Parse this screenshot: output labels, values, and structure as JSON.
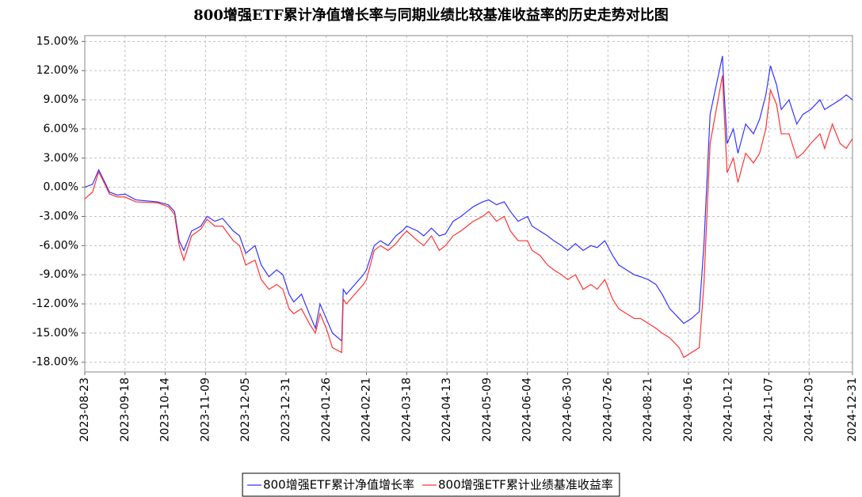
{
  "chart_data": {
    "type": "line",
    "title": "800增强ETF累计净值增长率与同期业绩比较基准收益率的历史走势对比图",
    "x": [
      "2023-08-23",
      "2023-08-28",
      "2023-09-01",
      "2023-09-05",
      "2023-09-08",
      "2023-09-13",
      "2023-09-18",
      "2023-09-25",
      "2023-10-09",
      "2023-10-16",
      "2023-10-20",
      "2023-10-23",
      "2023-10-26",
      "2023-10-31",
      "2023-11-06",
      "2023-11-10",
      "2023-11-15",
      "2023-11-20",
      "2023-11-27",
      "2023-12-01",
      "2023-12-05",
      "2023-12-11",
      "2023-12-15",
      "2023-12-20",
      "2023-12-25",
      "2023-12-29",
      "2024-01-02",
      "2024-01-05",
      "2024-01-10",
      "2024-01-15",
      "2024-01-19",
      "2024-01-22",
      "2024-01-26",
      "2024-01-30",
      "2024-02-05",
      "2024-02-06",
      "2024-02-08",
      "2024-02-19",
      "2024-02-21",
      "2024-02-26",
      "2024-03-01",
      "2024-03-06",
      "2024-03-11",
      "2024-03-15",
      "2024-03-18",
      "2024-03-25",
      "2024-03-29",
      "2024-04-03",
      "2024-04-08",
      "2024-04-12",
      "2024-04-17",
      "2024-04-22",
      "2024-04-26",
      "2024-04-30",
      "2024-05-06",
      "2024-05-10",
      "2024-05-15",
      "2024-05-20",
      "2024-05-24",
      "2024-05-29",
      "2024-06-04",
      "2024-06-07",
      "2024-06-12",
      "2024-06-17",
      "2024-06-21",
      "2024-06-26",
      "2024-06-30",
      "2024-07-05",
      "2024-07-10",
      "2024-07-15",
      "2024-07-19",
      "2024-07-24",
      "2024-07-29",
      "2024-08-02",
      "2024-08-07",
      "2024-08-12",
      "2024-08-16",
      "2024-08-21",
      "2024-08-26",
      "2024-08-30",
      "2024-09-04",
      "2024-09-10",
      "2024-09-13",
      "2024-09-18",
      "2024-09-23",
      "2024-09-26",
      "2024-09-30",
      "2024-10-08",
      "2024-10-09",
      "2024-10-11",
      "2024-10-15",
      "2024-10-18",
      "2024-10-23",
      "2024-10-28",
      "2024-11-01",
      "2024-11-05",
      "2024-11-08",
      "2024-11-12",
      "2024-11-15",
      "2024-11-20",
      "2024-11-25",
      "2024-11-29",
      "2024-12-04",
      "2024-12-10",
      "2024-12-13",
      "2024-12-18",
      "2024-12-23",
      "2024-12-27",
      "2024-12-31"
    ],
    "series": [
      {
        "name": "800增强ETF累计净值增长率",
        "color": "#3333ff",
        "values": [
          0,
          0.3,
          1.8,
          0.5,
          -0.5,
          -0.8,
          -0.7,
          -1.3,
          -1.5,
          -1.8,
          -2.5,
          -5.5,
          -6.5,
          -4.5,
          -4.0,
          -3.0,
          -3.5,
          -3.2,
          -4.5,
          -5.0,
          -6.8,
          -6.0,
          -8.0,
          -9.2,
          -8.5,
          -9.0,
          -11.0,
          -11.8,
          -11.0,
          -13.0,
          -14.5,
          -12.0,
          -13.5,
          -15.0,
          -15.8,
          -10.5,
          -11.0,
          -9.0,
          -8.5,
          -6.0,
          -5.5,
          -6.0,
          -5.0,
          -4.5,
          -4.0,
          -4.5,
          -5.0,
          -4.2,
          -5.0,
          -4.8,
          -3.5,
          -3.0,
          -2.5,
          -2.0,
          -1.5,
          -1.3,
          -1.8,
          -1.5,
          -2.5,
          -3.5,
          -3.0,
          -4.0,
          -4.5,
          -5.0,
          -5.5,
          -6.0,
          -6.5,
          -5.8,
          -6.5,
          -6.0,
          -6.2,
          -5.5,
          -7.0,
          -8.0,
          -8.5,
          -9.0,
          -9.2,
          -9.5,
          -10.0,
          -11.0,
          -12.5,
          -13.5,
          -14.0,
          -13.5,
          -12.8,
          -6.0,
          7.5,
          13.5,
          10.0,
          4.5,
          6.0,
          3.5,
          6.5,
          5.5,
          7.0,
          9.5,
          12.5,
          10.5,
          8.0,
          9.0,
          6.5,
          7.5,
          8.0,
          9.0,
          8.0,
          8.5,
          9.0,
          9.5,
          9.0
        ]
      },
      {
        "name": "800增强ETF累计业绩基准收益率",
        "color": "#ff3333",
        "values": [
          -1.2,
          -0.5,
          1.6,
          0.3,
          -0.7,
          -1.0,
          -1.0,
          -1.5,
          -1.6,
          -2.0,
          -2.8,
          -6.0,
          -7.5,
          -5.0,
          -4.3,
          -3.3,
          -4.0,
          -4.0,
          -5.5,
          -6.0,
          -8.0,
          -7.5,
          -9.5,
          -10.5,
          -10.0,
          -10.5,
          -12.5,
          -13.0,
          -12.5,
          -14.0,
          -15.0,
          -13.0,
          -14.5,
          -16.5,
          -17.0,
          -11.5,
          -12.0,
          -10.0,
          -9.5,
          -6.5,
          -6.0,
          -6.5,
          -5.8,
          -5.0,
          -4.5,
          -5.5,
          -6.0,
          -5.0,
          -6.5,
          -6.0,
          -5.0,
          -4.5,
          -4.0,
          -3.5,
          -3.0,
          -2.5,
          -3.5,
          -3.0,
          -4.5,
          -5.5,
          -5.5,
          -6.5,
          -7.0,
          -8.0,
          -8.5,
          -9.0,
          -9.5,
          -9.0,
          -10.5,
          -10.0,
          -10.5,
          -9.5,
          -11.5,
          -12.5,
          -13.0,
          -13.5,
          -13.5,
          -14.0,
          -14.5,
          -15.0,
          -15.5,
          -16.5,
          -17.5,
          -17.0,
          -16.5,
          -10.0,
          4.5,
          11.5,
          8.0,
          1.5,
          3.0,
          0.5,
          3.5,
          2.5,
          3.5,
          6.0,
          10.0,
          8.5,
          5.5,
          5.5,
          3.0,
          3.5,
          4.5,
          5.5,
          4.0,
          6.5,
          4.5,
          4.0,
          5.0
        ]
      }
    ],
    "xlim": [
      "2023-08-23",
      "2024-12-31"
    ],
    "xticks": [
      "2023-08-23",
      "2023-09-18",
      "2023-10-14",
      "2023-11-09",
      "2023-12-05",
      "2023-12-31",
      "2024-01-26",
      "2024-02-21",
      "2024-03-18",
      "2024-04-13",
      "2024-05-09",
      "2024-06-04",
      "2024-06-30",
      "2024-07-26",
      "2024-08-21",
      "2024-09-16",
      "2024-10-12",
      "2024-11-07",
      "2024-12-03",
      "2024-12-31"
    ],
    "ylim": [
      -19,
      15.6
    ],
    "yticks": [
      {
        "value": -18,
        "label": "-18.00%"
      },
      {
        "value": -15,
        "label": "-15.00%"
      },
      {
        "value": -12,
        "label": "-12.00%"
      },
      {
        "value": -9,
        "label": "-9.00%"
      },
      {
        "value": -6,
        "label": "-6.00%"
      },
      {
        "value": -3,
        "label": "-3.00%"
      },
      {
        "value": 0,
        "label": "0.00%"
      },
      {
        "value": 3,
        "label": "3.00%"
      },
      {
        "value": 6,
        "label": "6.00%"
      },
      {
        "value": 9,
        "label": "9.00%"
      },
      {
        "value": 12,
        "label": "12.00%"
      },
      {
        "value": 15,
        "label": "15.00%"
      }
    ],
    "grid": true,
    "legend": "bottom"
  }
}
